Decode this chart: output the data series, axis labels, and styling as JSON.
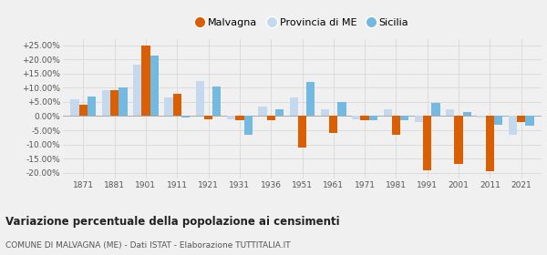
{
  "years": [
    1871,
    1881,
    1901,
    1911,
    1921,
    1931,
    1936,
    1951,
    1961,
    1971,
    1981,
    1991,
    2001,
    2011,
    2021
  ],
  "malvagna": [
    4.0,
    9.0,
    25.0,
    8.0,
    -1.0,
    -1.5,
    -1.5,
    -11.0,
    -6.0,
    -1.5,
    -6.5,
    -19.0,
    -17.0,
    -19.5,
    -2.0
  ],
  "provincia_me": [
    6.0,
    9.0,
    18.0,
    6.5,
    12.5,
    -1.0,
    3.5,
    6.5,
    2.5,
    -1.0,
    2.5,
    -2.0,
    2.5,
    -0.5,
    -6.5
  ],
  "sicilia": [
    7.0,
    10.0,
    21.5,
    -0.5,
    10.5,
    -6.5,
    2.5,
    12.0,
    5.0,
    -1.5,
    -1.5,
    4.5,
    1.5,
    -3.0,
    -3.5
  ],
  "color_malvagna": "#d95f02",
  "color_provincia": "#c5d9ee",
  "color_sicilia": "#74b9e0",
  "ylim_min": -22,
  "ylim_max": 27,
  "yticks": [
    -20,
    -15,
    -10,
    -5,
    0,
    5,
    10,
    15,
    20,
    25
  ],
  "ytick_labels": [
    "-20.00%",
    "-15.00%",
    "-10.00%",
    "-5.00%",
    "0.00%",
    "+5.00%",
    "+10.00%",
    "+15.00%",
    "+20.00%",
    "+25.00%"
  ],
  "title": "Variazione percentuale della popolazione ai censimenti",
  "subtitle": "COMUNE DI MALVAGNA (ME) - Dati ISTAT - Elaborazione TUTTITALIA.IT",
  "legend_labels": [
    "Malvagna",
    "Provincia di ME",
    "Sicilia"
  ],
  "bar_width": 0.27,
  "background_color": "#f0f0f0",
  "grid_color": "#d8d8d8"
}
